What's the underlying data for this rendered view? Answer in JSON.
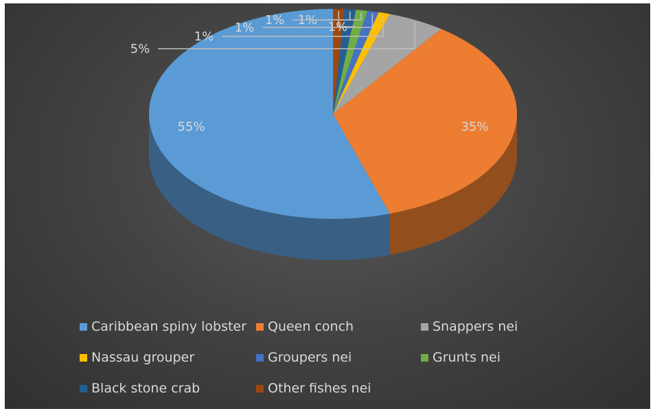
{
  "chart_data": {
    "type": "pie",
    "title": "",
    "slices": [
      {
        "label": "Caribbean spiny lobster",
        "value": 55,
        "color": "#5b9bd5"
      },
      {
        "label": "Queen conch",
        "value": 35,
        "color": "#ed7d31"
      },
      {
        "label": "Snappers nei",
        "value": 5,
        "color": "#a5a5a5"
      },
      {
        "label": "Nassau grouper",
        "value": 1,
        "color": "#ffc000"
      },
      {
        "label": "Groupers nei",
        "value": 1,
        "color": "#4472c4"
      },
      {
        "label": "Grunts nei",
        "value": 1,
        "color": "#70ad47"
      },
      {
        "label": "Black stone crab",
        "value": 1,
        "color": "#255e91"
      },
      {
        "label": "Other fishes nei",
        "value": 1,
        "color": "#9e480e"
      }
    ],
    "data_labels": [
      "55%",
      "35%",
      "5%",
      "1%",
      "1%",
      "1%",
      "1%",
      "1%"
    ],
    "legend_position": "bottom",
    "style": "3d-pie"
  }
}
